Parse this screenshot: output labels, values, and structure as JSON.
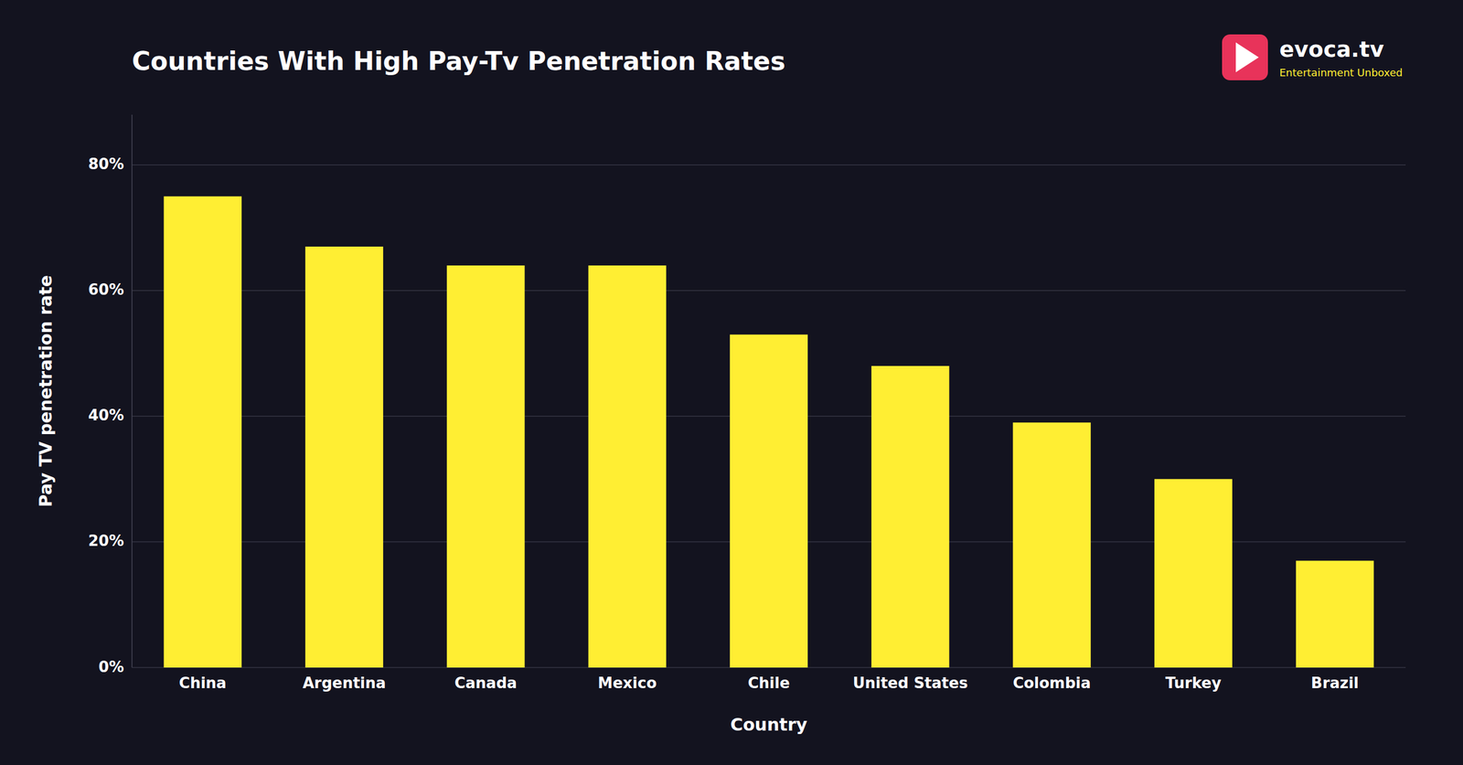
{
  "chart_data": {
    "type": "bar",
    "title": "Countries With High Pay-Tv Penetration Rates",
    "xlabel": "Country",
    "ylabel": "Pay TV penetration rate",
    "categories": [
      "China",
      "Argentina",
      "Canada",
      "Mexico",
      "Chile",
      "United States",
      "Colombia",
      "Turkey",
      "Brazil"
    ],
    "values": [
      75,
      67,
      64,
      64,
      53,
      48,
      39,
      30,
      17
    ],
    "color": "#FFEE33",
    "ylim": [
      0,
      88
    ],
    "yticks": [
      {
        "value": 0,
        "label": "0%"
      },
      {
        "value": 20,
        "label": "20%"
      },
      {
        "value": 40,
        "label": "40%"
      },
      {
        "value": 60,
        "label": "60%"
      },
      {
        "value": 80,
        "label": "80%"
      }
    ],
    "grid": true,
    "annotations": [
      "evoca.tv",
      "Entertainment Unboxed"
    ]
  }
}
